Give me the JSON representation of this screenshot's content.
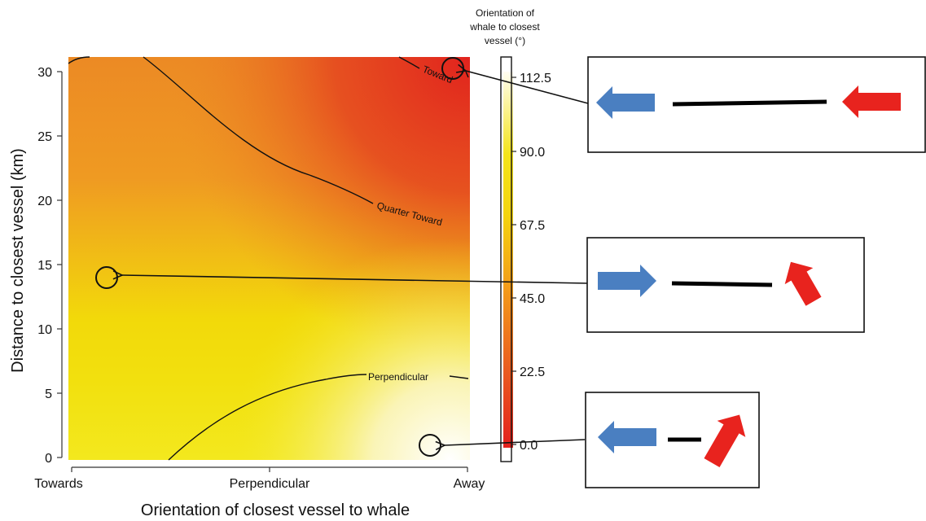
{
  "chart_data": {
    "type": "heatmap",
    "xlabel": "Orientation of closest vessel to whale",
    "ylabel": "Distance to closest vessel (km)",
    "x_categories": [
      "Towards",
      "Perpendicular",
      "Away"
    ],
    "y_ticks": [
      0,
      5,
      10,
      15,
      20,
      25,
      30
    ],
    "ylim": [
      0,
      31.5
    ],
    "colorbar": {
      "title": [
        "Orientation of",
        "whale to closest",
        "vessel (°)"
      ],
      "ticks": [
        "0.0",
        "22.5",
        "45.0",
        "67.5",
        "90.0",
        "112.5"
      ],
      "range": [
        0,
        120
      ],
      "colors": [
        "#e3201d",
        "#ee7a1f",
        "#f3d210",
        "#f2e200",
        "#fdfbe6"
      ]
    },
    "contours": [
      {
        "label": "Toward",
        "value": 22.5
      },
      {
        "label": "Quarter Toward",
        "value": 45
      },
      {
        "label": "Perpendicular",
        "value": 90
      }
    ],
    "highlights": [
      {
        "x_frac": 0.95,
        "y": 30.2
      },
      {
        "x_frac": 0.09,
        "y": 14
      },
      {
        "x_frac": 0.91,
        "y": 1
      }
    ],
    "arrow_colors": {
      "whale": "#4a7fc1",
      "vessel": "#e8231e"
    }
  }
}
